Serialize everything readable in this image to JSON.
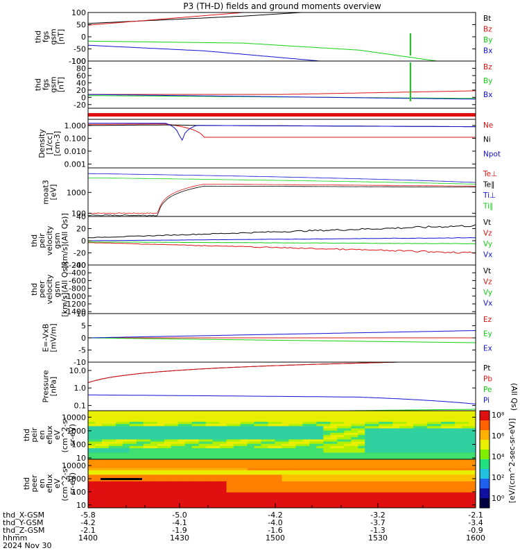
{
  "title": "P3 (TH-D) fields and ground moments overview",
  "date_label": "2024 Nov 30",
  "colors": {
    "black": "#000000",
    "red": "#e01010",
    "green": "#10d010",
    "blue": "#1010d0"
  },
  "chart_data": [
    {
      "type": "line",
      "ylabel": [
        "thd",
        "fgs",
        "gsm",
        "[nT]"
      ],
      "ylim": [
        -100,
        100
      ],
      "yticks": [
        100,
        50,
        0,
        -50,
        -100
      ],
      "series": [
        {
          "name": "Bt",
          "color": "black",
          "trend": [
            [
              0,
              55
            ],
            [
              0.4,
              85
            ],
            [
              0.55,
              100
            ]
          ]
        },
        {
          "name": "Bz",
          "color": "red",
          "trend": [
            [
              0,
              48
            ],
            [
              0.4,
              100
            ]
          ]
        },
        {
          "name": "By",
          "color": "green",
          "trend": [
            [
              0,
              -18
            ],
            [
              0.4,
              -26
            ],
            [
              0.7,
              -55
            ],
            [
              0.9,
              -100
            ]
          ]
        },
        {
          "name": "Bx",
          "color": "blue",
          "trend": [
            [
              0,
              -35
            ],
            [
              0.3,
              -58
            ],
            [
              0.6,
              -100
            ]
          ]
        }
      ]
    },
    {
      "type": "line",
      "ylabel": [
        "thd",
        "fgs",
        "gsm",
        "[nT]"
      ],
      "ylim": [
        -30,
        100
      ],
      "yticks": [
        100,
        80,
        60,
        40,
        20,
        0,
        -20
      ],
      "series": [
        {
          "name": "Bz",
          "color": "red",
          "trend": [
            [
              0,
              8
            ],
            [
              0.5,
              8
            ],
            [
              1,
              18
            ]
          ]
        },
        {
          "name": "By",
          "color": "green",
          "trend": [
            [
              0,
              5
            ],
            [
              1,
              -3
            ]
          ]
        },
        {
          "name": "Bx",
          "color": "blue",
          "trend": [
            [
              0,
              8
            ],
            [
              1,
              -5
            ]
          ]
        }
      ]
    },
    {
      "type": "line",
      "ylabel": [
        "Density",
        "[1/cc]",
        "[cm-3]"
      ],
      "ylim": [
        0.0005,
        3
      ],
      "yscale": "log",
      "yticks": [
        "1.000",
        "0.100",
        "0.010",
        "0.001"
      ],
      "series": [
        {
          "name": "Ne",
          "color": "red",
          "trend": [
            [
              0,
              1.2
            ],
            [
              0.2,
              1.3
            ],
            [
              0.3,
              0.12
            ],
            [
              1,
              0.12
            ]
          ]
        },
        {
          "name": "Ni",
          "color": "black",
          "trend": [
            [
              0,
              1
            ],
            [
              0.2,
              1.1
            ],
            [
              0.3,
              1
            ],
            [
              1,
              0.8
            ]
          ]
        },
        {
          "name": "Npot",
          "color": "blue",
          "trend": [
            [
              0,
              1.5
            ],
            [
              0.2,
              1.5
            ],
            [
              0.24,
              0.0006
            ],
            [
              0.28,
              1
            ],
            [
              1,
              0.8
            ]
          ]
        }
      ]
    },
    {
      "type": "line",
      "ylabel": [
        "moat3",
        "[eV]"
      ],
      "ylim": [
        70,
        15000
      ],
      "yscale": "log",
      "yticks": [
        "1000",
        "100"
      ],
      "series": [
        {
          "name": "Te⊥",
          "color": "red",
          "trend": [
            [
              0,
              100
            ],
            [
              0.18,
              100
            ],
            [
              0.3,
              2500
            ],
            [
              1,
              2000
            ]
          ]
        },
        {
          "name": "Te∥",
          "color": "black",
          "trend": [
            [
              0,
              80
            ],
            [
              0.18,
              80
            ],
            [
              0.3,
              2000
            ],
            [
              1,
              1800
            ]
          ]
        },
        {
          "name": "Ti⊥",
          "color": "blue",
          "trend": [
            [
              0,
              8000
            ],
            [
              1,
              3000
            ]
          ]
        },
        {
          "name": "Ti∥",
          "color": "green",
          "trend": [
            [
              0,
              5000
            ],
            [
              1,
              2500
            ]
          ]
        }
      ]
    },
    {
      "type": "line",
      "ylabel": [
        "thd",
        "peir",
        "velocity",
        "gsm",
        "[km/s](All Qs)]"
      ],
      "ylim": [
        -40,
        40
      ],
      "yticks": [
        40,
        20,
        0,
        -20,
        -40
      ],
      "series": [
        {
          "name": "Vt",
          "color": "black",
          "trend": [
            [
              0,
              5
            ],
            [
              1,
              25
            ]
          ]
        },
        {
          "name": "Vz",
          "color": "red",
          "trend": [
            [
              0,
              -3
            ],
            [
              1,
              -20
            ]
          ]
        },
        {
          "name": "Vy",
          "color": "green",
          "trend": [
            [
              0,
              -2
            ],
            [
              1,
              -5
            ]
          ]
        },
        {
          "name": "Vx",
          "color": "blue",
          "trend": [
            [
              0,
              0
            ],
            [
              1,
              5
            ]
          ]
        }
      ]
    },
    {
      "type": "line",
      "ylabel": [
        "thd",
        "peer",
        "velocity",
        "gsm",
        "[km/s](All Qs)]"
      ],
      "ylim": [
        -1450,
        -200
      ],
      "yticks": [
        -200,
        -400,
        -600,
        -800,
        -1000,
        -1200,
        -1400
      ],
      "series": [
        {
          "name": "Vt",
          "color": "black"
        },
        {
          "name": "Vz",
          "color": "red"
        },
        {
          "name": "Vy",
          "color": "green"
        },
        {
          "name": "Vx",
          "color": "blue"
        }
      ]
    },
    {
      "type": "line",
      "ylabel": [
        "E=-VxB",
        "[mV/m]"
      ],
      "ylim": [
        -10,
        10
      ],
      "yticks": [
        10,
        5,
        0,
        -5,
        -10
      ],
      "series": [
        {
          "name": "Ez",
          "color": "red",
          "trend": [
            [
              0,
              0
            ],
            [
              1,
              0
            ]
          ]
        },
        {
          "name": "Ey",
          "color": "green",
          "trend": [
            [
              0,
              0
            ],
            [
              1,
              -2
            ]
          ]
        },
        {
          "name": "Ex",
          "color": "blue",
          "trend": [
            [
              0,
              0
            ],
            [
              1,
              3
            ]
          ]
        }
      ]
    },
    {
      "type": "line",
      "ylabel": [
        "Pressure",
        "[nPa]"
      ],
      "ylim": [
        0.05,
        30
      ],
      "yscale": "log",
      "yticks": [
        "10.0",
        "1.0",
        "0.1"
      ],
      "series": [
        {
          "name": "Pt",
          "color": "black",
          "trend": [
            [
              0,
              2
            ],
            [
              0.8,
              30
            ]
          ]
        },
        {
          "name": "Pb",
          "color": "red",
          "trend": [
            [
              0,
              2
            ],
            [
              0.8,
              30
            ]
          ]
        },
        {
          "name": "Pe",
          "color": "green",
          "trend": [
            [
              0,
              0.03
            ],
            [
              1,
              0.06
            ]
          ]
        },
        {
          "name": "Pi",
          "color": "blue",
          "trend": [
            [
              0,
              0.4
            ],
            [
              0.7,
              0.3
            ],
            [
              1,
              0.12
            ]
          ]
        }
      ],
      "side_label": "(All Qs)"
    },
    {
      "type": "heatmap",
      "ylabel": [
        "thd",
        "peir",
        "en",
        "eflux",
        "eV",
        "(cm^2-s-",
        "sr-eV)"
      ],
      "yscale": "log",
      "ylim": [
        8,
        30000
      ],
      "yticks": [
        "10000",
        "1000",
        "100",
        "10"
      ]
    },
    {
      "type": "heatmap",
      "ylabel": [
        "thd",
        "peer",
        "en",
        "eflux",
        "eV",
        "(cm^2-s-",
        "sr-eV)"
      ],
      "yscale": "log",
      "ylim": [
        6,
        30000
      ],
      "yticks": [
        "10000",
        "1000",
        "100",
        "10"
      ]
    }
  ],
  "colorbar": {
    "labels": [
      "10⁸",
      "10⁶",
      "10⁴",
      "10²",
      "10⁰"
    ],
    "title": "[eV/(cm^2-sec-sr-eV)]"
  },
  "xaxis": {
    "rows": [
      {
        "name": "thd_X-GSM",
        "values": [
          "-5.8",
          "-5.0",
          "-4.2",
          "-3.2",
          "-2.1"
        ]
      },
      {
        "name": "thd_Y-GSM",
        "values": [
          "-4.2",
          "-4.1",
          "-4.0",
          "-3.7",
          "-3.4"
        ]
      },
      {
        "name": "thd_Z-GSM",
        "values": [
          "-2.1",
          "-1.9",
          "-1.6",
          "-1.3",
          "-0.9"
        ]
      },
      {
        "name": "hhmm",
        "values": [
          "1400",
          "1430",
          "1500",
          "1530",
          "1600"
        ]
      }
    ]
  }
}
